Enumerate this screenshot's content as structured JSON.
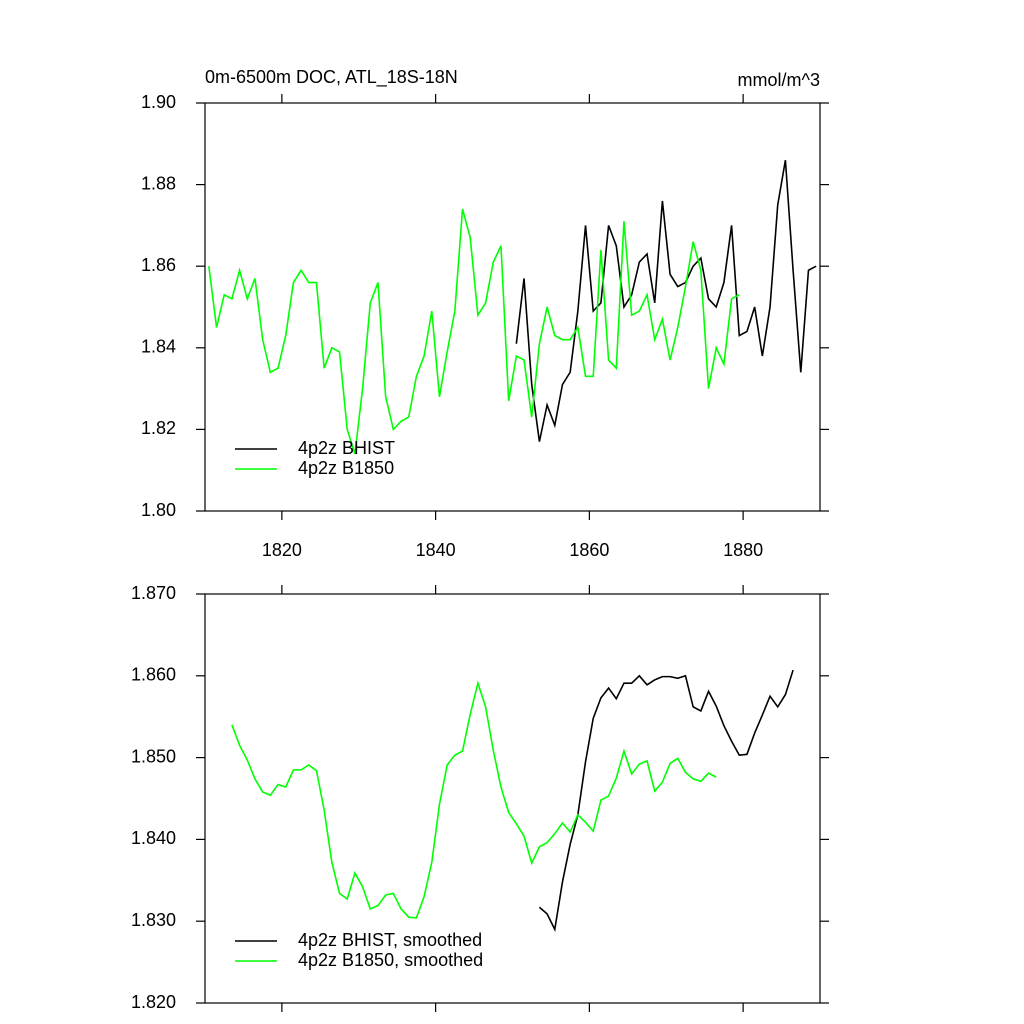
{
  "chart_data": [
    {
      "type": "line",
      "title": "0m-6500m DOC, ATL_18S-18N",
      "units": "mmol/m^3",
      "xlim": [
        1810,
        1890
      ],
      "xticks": [
        1820,
        1840,
        1860,
        1880
      ],
      "ylim": [
        1.8,
        1.9
      ],
      "yticks": [
        {
          "value": 1.8,
          "label": "1.80"
        },
        {
          "value": 1.82,
          "label": "1.82"
        },
        {
          "value": 1.84,
          "label": "1.84"
        },
        {
          "value": 1.86,
          "label": "1.86"
        },
        {
          "value": 1.88,
          "label": "1.88"
        },
        {
          "value": 1.9,
          "label": "1.90"
        }
      ],
      "legend": "lower left",
      "series": [
        {
          "name": "4p2z BHIST",
          "color": "#000000",
          "x": [
            1850.5,
            1851.5,
            1852.5,
            1853.5,
            1854.5,
            1855.5,
            1856.5,
            1857.5,
            1858.5,
            1859.5,
            1860.5,
            1861.5,
            1862.5,
            1863.5,
            1864.5,
            1865.5,
            1866.5,
            1867.5,
            1868.5,
            1869.5,
            1870.5,
            1871.5,
            1872.5,
            1873.5,
            1874.5,
            1875.5,
            1876.5,
            1877.5,
            1878.5,
            1879.5,
            1880.5,
            1881.5,
            1882.5,
            1883.5,
            1884.5,
            1885.5,
            1886.5,
            1887.5,
            1888.5,
            1889.5
          ],
          "values": [
            1.841,
            1.857,
            1.831,
            1.817,
            1.826,
            1.821,
            1.831,
            1.834,
            1.849,
            1.87,
            1.849,
            1.851,
            1.87,
            1.865,
            1.85,
            1.853,
            1.861,
            1.863,
            1.851,
            1.876,
            1.858,
            1.855,
            1.856,
            1.86,
            1.862,
            1.852,
            1.85,
            1.856,
            1.87,
            1.843,
            1.844,
            1.85,
            1.838,
            1.85,
            1.875,
            1.886,
            1.859,
            1.834,
            1.859,
            1.86
          ]
        },
        {
          "name": "4p2z B1850",
          "color": "#00ff00",
          "x": [
            1810.5,
            1811.5,
            1812.5,
            1813.5,
            1814.5,
            1815.5,
            1816.5,
            1817.5,
            1818.5,
            1819.5,
            1820.5,
            1821.5,
            1822.5,
            1823.5,
            1824.5,
            1825.5,
            1826.5,
            1827.5,
            1828.5,
            1829.5,
            1830.5,
            1831.5,
            1832.5,
            1833.5,
            1834.5,
            1835.5,
            1836.5,
            1837.5,
            1838.5,
            1839.5,
            1840.5,
            1841.5,
            1842.5,
            1843.5,
            1844.5,
            1845.5,
            1846.5,
            1847.5,
            1848.5,
            1849.5,
            1850.5,
            1851.5,
            1852.5,
            1853.5,
            1854.5,
            1855.5,
            1856.5,
            1857.5,
            1858.5,
            1859.5,
            1860.5,
            1861.5,
            1862.5,
            1863.5,
            1864.5,
            1865.5,
            1866.5,
            1867.5,
            1868.5,
            1869.5,
            1870.5,
            1871.5,
            1872.5,
            1873.5,
            1874.5,
            1875.5,
            1876.5,
            1877.5,
            1878.5,
            1879.5
          ],
          "values": [
            1.86,
            1.845,
            1.853,
            1.852,
            1.859,
            1.852,
            1.857,
            1.842,
            1.834,
            1.835,
            1.843,
            1.856,
            1.859,
            1.856,
            1.856,
            1.835,
            1.84,
            1.839,
            1.82,
            1.814,
            1.83,
            1.851,
            1.856,
            1.828,
            1.82,
            1.822,
            1.823,
            1.833,
            1.838,
            1.849,
            1.828,
            1.839,
            1.849,
            1.874,
            1.867,
            1.848,
            1.851,
            1.861,
            1.865,
            1.827,
            1.838,
            1.837,
            1.823,
            1.841,
            1.85,
            1.843,
            1.842,
            1.842,
            1.845,
            1.833,
            1.833,
            1.864,
            1.837,
            1.835,
            1.871,
            1.848,
            1.849,
            1.853,
            1.842,
            1.847,
            1.837,
            1.845,
            1.855,
            1.866,
            1.859,
            1.83,
            1.84,
            1.836,
            1.852,
            1.853
          ]
        }
      ]
    },
    {
      "type": "line",
      "xlim": [
        1810,
        1890
      ],
      "xticks": [
        1820,
        1840,
        1860,
        1880
      ],
      "xtick_labels": false,
      "ylim": [
        1.82,
        1.87
      ],
      "yticks": [
        {
          "value": 1.82,
          "label": "1.820"
        },
        {
          "value": 1.83,
          "label": "1.830"
        },
        {
          "value": 1.84,
          "label": "1.840"
        },
        {
          "value": 1.85,
          "label": "1.850"
        },
        {
          "value": 1.86,
          "label": "1.860"
        },
        {
          "value": 1.87,
          "label": "1.870"
        }
      ],
      "legend": "lower left",
      "series": [
        {
          "name": "4p2z BHIST, smoothed",
          "color": "#000000",
          "x": [
            1853.5,
            1854.5,
            1855.5,
            1856.5,
            1857.5,
            1858.5,
            1859.5,
            1860.5,
            1861.5,
            1862.5,
            1863.5,
            1864.5,
            1865.5,
            1866.5,
            1867.5,
            1868.5,
            1869.5,
            1870.5,
            1871.5,
            1872.5,
            1873.5,
            1874.5,
            1875.5,
            1876.5,
            1877.5,
            1878.5,
            1879.5,
            1880.5,
            1881.5,
            1882.5,
            1883.5,
            1884.5,
            1885.5,
            1886.5
          ],
          "values": [
            1.8317,
            1.8309,
            1.829,
            1.8348,
            1.8394,
            1.843,
            1.8495,
            1.8548,
            1.8573,
            1.8585,
            1.8572,
            1.8591,
            1.8591,
            1.86,
            1.8589,
            1.8595,
            1.8599,
            1.8599,
            1.8597,
            1.86,
            1.8562,
            1.8557,
            1.8581,
            1.8563,
            1.8539,
            1.852,
            1.8503,
            1.8504,
            1.853,
            1.8552,
            1.8575,
            1.8562,
            1.8577,
            1.8607
          ]
        },
        {
          "name": "4p2z B1850, smoothed",
          "color": "#00ff00",
          "x": [
            1813.5,
            1814.5,
            1815.5,
            1816.5,
            1817.5,
            1818.5,
            1819.5,
            1820.5,
            1821.5,
            1822.5,
            1823.5,
            1824.5,
            1825.5,
            1826.5,
            1827.5,
            1828.5,
            1829.5,
            1830.5,
            1831.5,
            1832.5,
            1833.5,
            1834.5,
            1835.5,
            1836.5,
            1837.5,
            1838.5,
            1839.5,
            1840.5,
            1841.5,
            1842.5,
            1843.5,
            1844.5,
            1845.5,
            1846.5,
            1847.5,
            1848.5,
            1849.5,
            1850.5,
            1851.5,
            1852.5,
            1853.5,
            1854.5,
            1855.5,
            1856.5,
            1857.5,
            1858.5,
            1859.5,
            1860.5,
            1861.5,
            1862.5,
            1863.5,
            1864.5,
            1865.5,
            1866.5,
            1867.5,
            1868.5,
            1869.5,
            1870.5,
            1871.5,
            1872.5,
            1873.5,
            1874.5,
            1875.5,
            1876.5
          ],
          "values": [
            1.854,
            1.8515,
            1.8497,
            1.8474,
            1.8458,
            1.8454,
            1.8467,
            1.8464,
            1.8485,
            1.8485,
            1.8491,
            1.8484,
            1.8436,
            1.8372,
            1.8334,
            1.8327,
            1.8359,
            1.8342,
            1.8315,
            1.8319,
            1.8332,
            1.8334,
            1.8315,
            1.8305,
            1.8304,
            1.833,
            1.8372,
            1.8443,
            1.8491,
            1.8503,
            1.8508,
            1.8553,
            1.8591,
            1.8562,
            1.8509,
            1.8464,
            1.8433,
            1.8419,
            1.8404,
            1.8371,
            1.8391,
            1.8396,
            1.8407,
            1.842,
            1.8409,
            1.843,
            1.8421,
            1.841,
            1.8448,
            1.8453,
            1.8475,
            1.8508,
            1.848,
            1.8492,
            1.8496,
            1.8459,
            1.847,
            1.8493,
            1.8499,
            1.8482,
            1.8474,
            1.8471,
            1.8481,
            1.8476
          ]
        }
      ]
    }
  ]
}
